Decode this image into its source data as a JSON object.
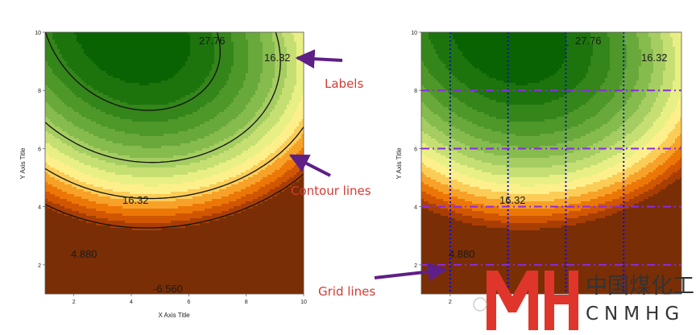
{
  "palette": [
    "#7a2e05",
    "#a83e04",
    "#d15602",
    "#ec7707",
    "#f7a129",
    "#fbcd57",
    "#fdf08b",
    "#e8ef85",
    "#c6df73",
    "#a5cd61",
    "#86bb4e",
    "#69a93b",
    "#4e9729",
    "#34851a",
    "#1d740d",
    "#0a6303"
  ],
  "accent": {
    "annotation": "#d43a32",
    "arrow": "#5e1f86",
    "grid_dash": "#8b2be2",
    "grid_dot": "#0b0bd6",
    "logo_red": "#e0352b"
  },
  "left_panel": {
    "xlabel": "X Axis Title",
    "ylabel": "Y Axis Title",
    "contour_levels": [
      -6.56,
      4.88,
      16.32,
      27.76
    ],
    "contour_labels": [
      "27.76",
      "16.32",
      "16.32",
      "4.880",
      "-6.560"
    ],
    "contour_lines": true,
    "grid": false
  },
  "right_panel": {
    "xlabel": "",
    "ylabel": "Y Axis Title",
    "contour_labels": [
      "27.76",
      "16.32",
      "16.32",
      "4.880"
    ],
    "contour_lines": false,
    "grid": true,
    "grid_x": [
      2,
      4,
      6,
      8
    ],
    "grid_y": [
      2,
      4,
      6,
      8
    ]
  },
  "annotations": {
    "labels": "Labels",
    "contour_lines": "Contour lines",
    "grid_lines": "Grid lines"
  },
  "logo": {
    "chinese": "中国煤化工",
    "english": "CNMHG"
  },
  "chart_data": [
    {
      "type": "heatmap",
      "subtype": "contour",
      "title": "",
      "xlabel": "X Axis Title",
      "ylabel": "Y Axis Title",
      "xlim": [
        1,
        10
      ],
      "ylim": [
        1,
        10
      ],
      "x_ticks": [
        2,
        4,
        6,
        8,
        10
      ],
      "y_ticks": [
        2,
        4,
        6,
        8,
        10
      ],
      "contour_levels": [
        -6.56,
        4.88,
        16.32,
        27.76
      ],
      "labeled_levels": [
        27.76,
        16.32,
        16.32,
        4.88,
        -6.56
      ],
      "colorscale": "orange-yellow-green",
      "grid": false
    },
    {
      "type": "heatmap",
      "subtype": "contour",
      "title": "",
      "xlabel": "",
      "ylabel": "Y Axis Title",
      "xlim": [
        1,
        10
      ],
      "ylim": [
        1,
        10
      ],
      "x_ticks": [
        2
      ],
      "y_ticks": [
        2,
        4,
        6,
        8,
        10
      ],
      "labeled_levels": [
        27.76,
        16.32,
        16.32,
        4.88
      ],
      "colorscale": "orange-yellow-green",
      "grid": true,
      "grid_x": [
        2,
        4,
        6,
        8
      ],
      "grid_y": [
        2,
        4,
        6,
        8
      ]
    }
  ]
}
